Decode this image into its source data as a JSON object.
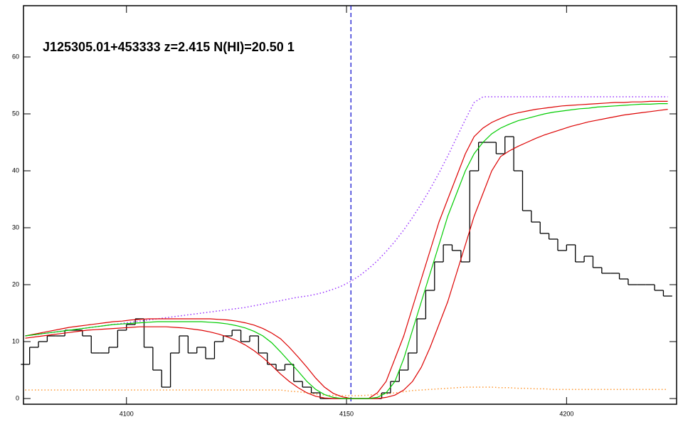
{
  "chart_data": {
    "type": "line",
    "annotation": "J125305.01+453333 z=2.415 N(HI)=20.50 1",
    "xlim": [
      4076.6,
      4225
    ],
    "ylim": [
      -1,
      69
    ],
    "xticks": [
      4100,
      4150,
      4200
    ],
    "yticks": [
      0,
      10,
      20,
      30,
      40,
      50,
      60
    ],
    "vlines": [
      {
        "x": 4151,
        "color": "#0000cc",
        "style": "dashed"
      }
    ],
    "x": [
      4077,
      4079,
      4081,
      4083,
      4085,
      4087,
      4089,
      4091,
      4093,
      4095,
      4097,
      4099,
      4101,
      4103,
      4105,
      4107,
      4109,
      4111,
      4113,
      4115,
      4117,
      4119,
      4121,
      4123,
      4125,
      4127,
      4129,
      4131,
      4133,
      4135,
      4137,
      4139,
      4141,
      4143,
      4145,
      4147,
      4149,
      4151,
      4153,
      4155,
      4157,
      4159,
      4161,
      4163,
      4165,
      4167,
      4169,
      4171,
      4173,
      4175,
      4177,
      4179,
      4181,
      4183,
      4185,
      4187,
      4189,
      4191,
      4193,
      4195,
      4197,
      4199,
      4201,
      4203,
      4205,
      4207,
      4209,
      4211,
      4213,
      4215,
      4217,
      4219,
      4221,
      4223
    ],
    "series": [
      {
        "color": "#ff9933",
        "style": "dotted",
        "values": [
          1.5,
          1.5,
          1.5,
          1.5,
          1.5,
          1.5,
          1.5,
          1.5,
          1.5,
          1.5,
          1.5,
          1.5,
          1.5,
          1.5,
          1.5,
          1.5,
          1.5,
          1.5,
          1.5,
          1.5,
          1.5,
          1.5,
          1.5,
          1.5,
          1.5,
          1.5,
          1.5,
          1.5,
          1.5,
          1.5,
          1.3,
          1.2,
          1,
          0.8,
          0.6,
          0.5,
          0.5,
          0.5,
          0.5,
          0.6,
          0.7,
          0.8,
          1,
          1.2,
          1.4,
          1.5,
          1.6,
          1.7,
          1.8,
          1.9,
          2,
          2,
          2,
          2,
          1.9,
          1.9,
          1.8,
          1.8,
          1.7,
          1.7,
          1.6,
          1.6,
          1.6,
          1.6,
          1.6,
          1.6,
          1.6,
          1.6,
          1.6,
          1.6,
          1.6,
          1.6,
          1.6,
          1.6
        ]
      },
      {
        "color": "#9933ff",
        "style": "dotted",
        "values": [
          11,
          11.2,
          11.4,
          11.6,
          11.8,
          12,
          12.2,
          12.4,
          12.6,
          12.8,
          13,
          13.2,
          13.4,
          13.6,
          13.8,
          14,
          14.2,
          14.4,
          14.6,
          14.8,
          15,
          15.2,
          15.4,
          15.6,
          15.8,
          16,
          16.3,
          16.6,
          16.9,
          17.2,
          17.5,
          17.8,
          18,
          18.3,
          18.7,
          19.2,
          19.8,
          20.6,
          21.6,
          22.8,
          24.2,
          25.8,
          27.6,
          29.6,
          31.8,
          34.2,
          36.8,
          39.6,
          42.6,
          45.8,
          49,
          52,
          53,
          53,
          53,
          53,
          53,
          53,
          53,
          53,
          53,
          53,
          53,
          53,
          53,
          53,
          53,
          53,
          53,
          53,
          53,
          53,
          53,
          53
        ]
      },
      {
        "color": "#000000",
        "style": "steps",
        "values": [
          6,
          9,
          10,
          11,
          11,
          12,
          12,
          11,
          8,
          8,
          9,
          12,
          13,
          14,
          9,
          5,
          2,
          8,
          11,
          8,
          9,
          7,
          10,
          11,
          12,
          10,
          11,
          8,
          6,
          5,
          6,
          3,
          2,
          1,
          0,
          0,
          0,
          0,
          0,
          0,
          0,
          1,
          3,
          5,
          8,
          14,
          19,
          24,
          27,
          26,
          24,
          40,
          45,
          45,
          43,
          46,
          40,
          33,
          31,
          29,
          28,
          26,
          27,
          24,
          25,
          23,
          22,
          22,
          21,
          20,
          20,
          20,
          19,
          18
        ]
      },
      {
        "color": "#dd0000",
        "style": "solid",
        "values": [
          11,
          11.3,
          11.6,
          11.9,
          12.2,
          12.5,
          12.7,
          12.9,
          13.1,
          13.3,
          13.5,
          13.6,
          13.8,
          13.9,
          14,
          14,
          14,
          14,
          14,
          14,
          14,
          14,
          13.9,
          13.8,
          13.6,
          13.3,
          12.9,
          12.3,
          11.5,
          10.5,
          9,
          7.3,
          5.5,
          3.6,
          2,
          0.9,
          0.3,
          0,
          0,
          0,
          1,
          3,
          7,
          11,
          16,
          21,
          26,
          31,
          35,
          39,
          43,
          46,
          47.5,
          48.5,
          49.2,
          49.8,
          50.2,
          50.5,
          50.8,
          51,
          51.2,
          51.4,
          51.5,
          51.6,
          51.7,
          51.8,
          51.9,
          52,
          52,
          52.1,
          52.1,
          52.2,
          52.2,
          52.2
        ]
      },
      {
        "color": "#dd0000",
        "style": "solid",
        "values": [
          10.6,
          10.8,
          11,
          11.2,
          11.4,
          11.6,
          11.8,
          12,
          12.1,
          12.2,
          12.3,
          12.4,
          12.5,
          12.6,
          12.6,
          12.6,
          12.6,
          12.5,
          12.4,
          12.2,
          12,
          11.7,
          11.3,
          10.8,
          10.2,
          9.4,
          8.4,
          7.2,
          5.8,
          4.3,
          3,
          1.9,
          1,
          0.4,
          0.1,
          0,
          0,
          0,
          0,
          0,
          0,
          0.2,
          0.6,
          1.5,
          3,
          5.5,
          9,
          13,
          17,
          22,
          27,
          32,
          36,
          40,
          42.5,
          43.5,
          44.3,
          45,
          45.7,
          46.3,
          46.8,
          47.3,
          47.8,
          48.2,
          48.6,
          48.9,
          49.2,
          49.5,
          49.8,
          50,
          50.2,
          50.4,
          50.6,
          50.8
        ]
      },
      {
        "color": "#00cc00",
        "style": "solid",
        "values": [
          11,
          11.2,
          11.4,
          11.6,
          11.8,
          12,
          12.2,
          12.4,
          12.6,
          12.8,
          13,
          13.1,
          13.2,
          13.3,
          13.4,
          13.5,
          13.5,
          13.5,
          13.5,
          13.5,
          13.5,
          13.4,
          13.3,
          13.1,
          12.8,
          12.4,
          11.8,
          11,
          9.8,
          8.2,
          6.5,
          4.8,
          3,
          1.6,
          0.7,
          0.2,
          0,
          0,
          0,
          0,
          0.2,
          1,
          3,
          7,
          12,
          17,
          22,
          27,
          32,
          36,
          40,
          43,
          45,
          46.5,
          47.5,
          48.2,
          48.8,
          49.2,
          49.6,
          50,
          50.3,
          50.5,
          50.7,
          50.9,
          51,
          51.2,
          51.3,
          51.4,
          51.5,
          51.6,
          51.7,
          51.7,
          51.8,
          51.8
        ]
      }
    ]
  }
}
